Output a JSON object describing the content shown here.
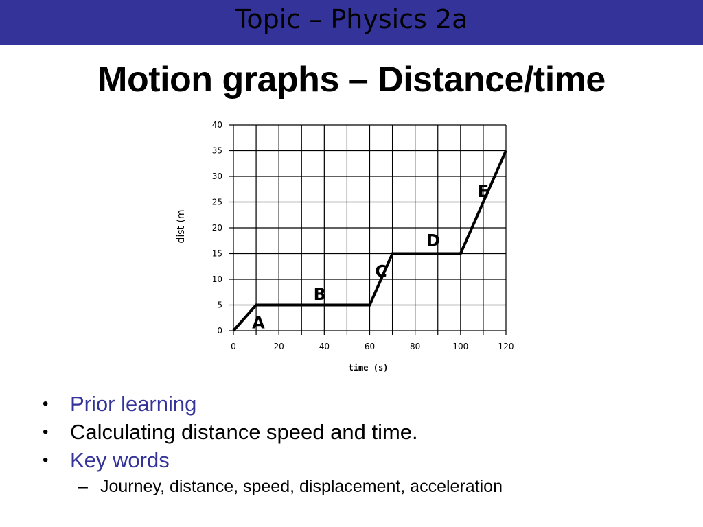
{
  "header": {
    "topic": "Topic – Physics 2a",
    "title": "Motion graphs – Distance/time"
  },
  "chart_data": {
    "type": "line",
    "title": "",
    "xlabel": "time (s)",
    "ylabel": "dist (m",
    "xlim": [
      0,
      120
    ],
    "ylim": [
      0,
      40
    ],
    "xticks": [
      0,
      20,
      40,
      60,
      80,
      100,
      120
    ],
    "yticks": [
      0,
      5,
      10,
      15,
      20,
      25,
      30,
      35,
      40
    ],
    "grid": true,
    "grid_x_step": 10,
    "series": [
      {
        "x": [
          0,
          10,
          60,
          70,
          100,
          120
        ],
        "y": [
          0,
          5,
          5,
          15,
          15,
          35
        ]
      }
    ],
    "annotations": [
      {
        "text": "A",
        "x": 11,
        "y": 0.5
      },
      {
        "text": "B",
        "x": 38,
        "y": 6
      },
      {
        "text": "C",
        "x": 65,
        "y": 10.5
      },
      {
        "text": "D",
        "x": 88,
        "y": 16.5
      },
      {
        "text": "E",
        "x": 110,
        "y": 26
      }
    ]
  },
  "bullets": [
    {
      "text": "Prior learning",
      "style": "highlight"
    },
    {
      "text": "Calculating distance speed and time.",
      "style": "plain"
    },
    {
      "text": "Key words",
      "style": "highlight"
    }
  ],
  "subbullets": [
    {
      "text": "Journey, distance, speed, displacement, acceleration"
    }
  ],
  "colors": {
    "header_bar": "#333399",
    "highlight_text": "#333399"
  }
}
